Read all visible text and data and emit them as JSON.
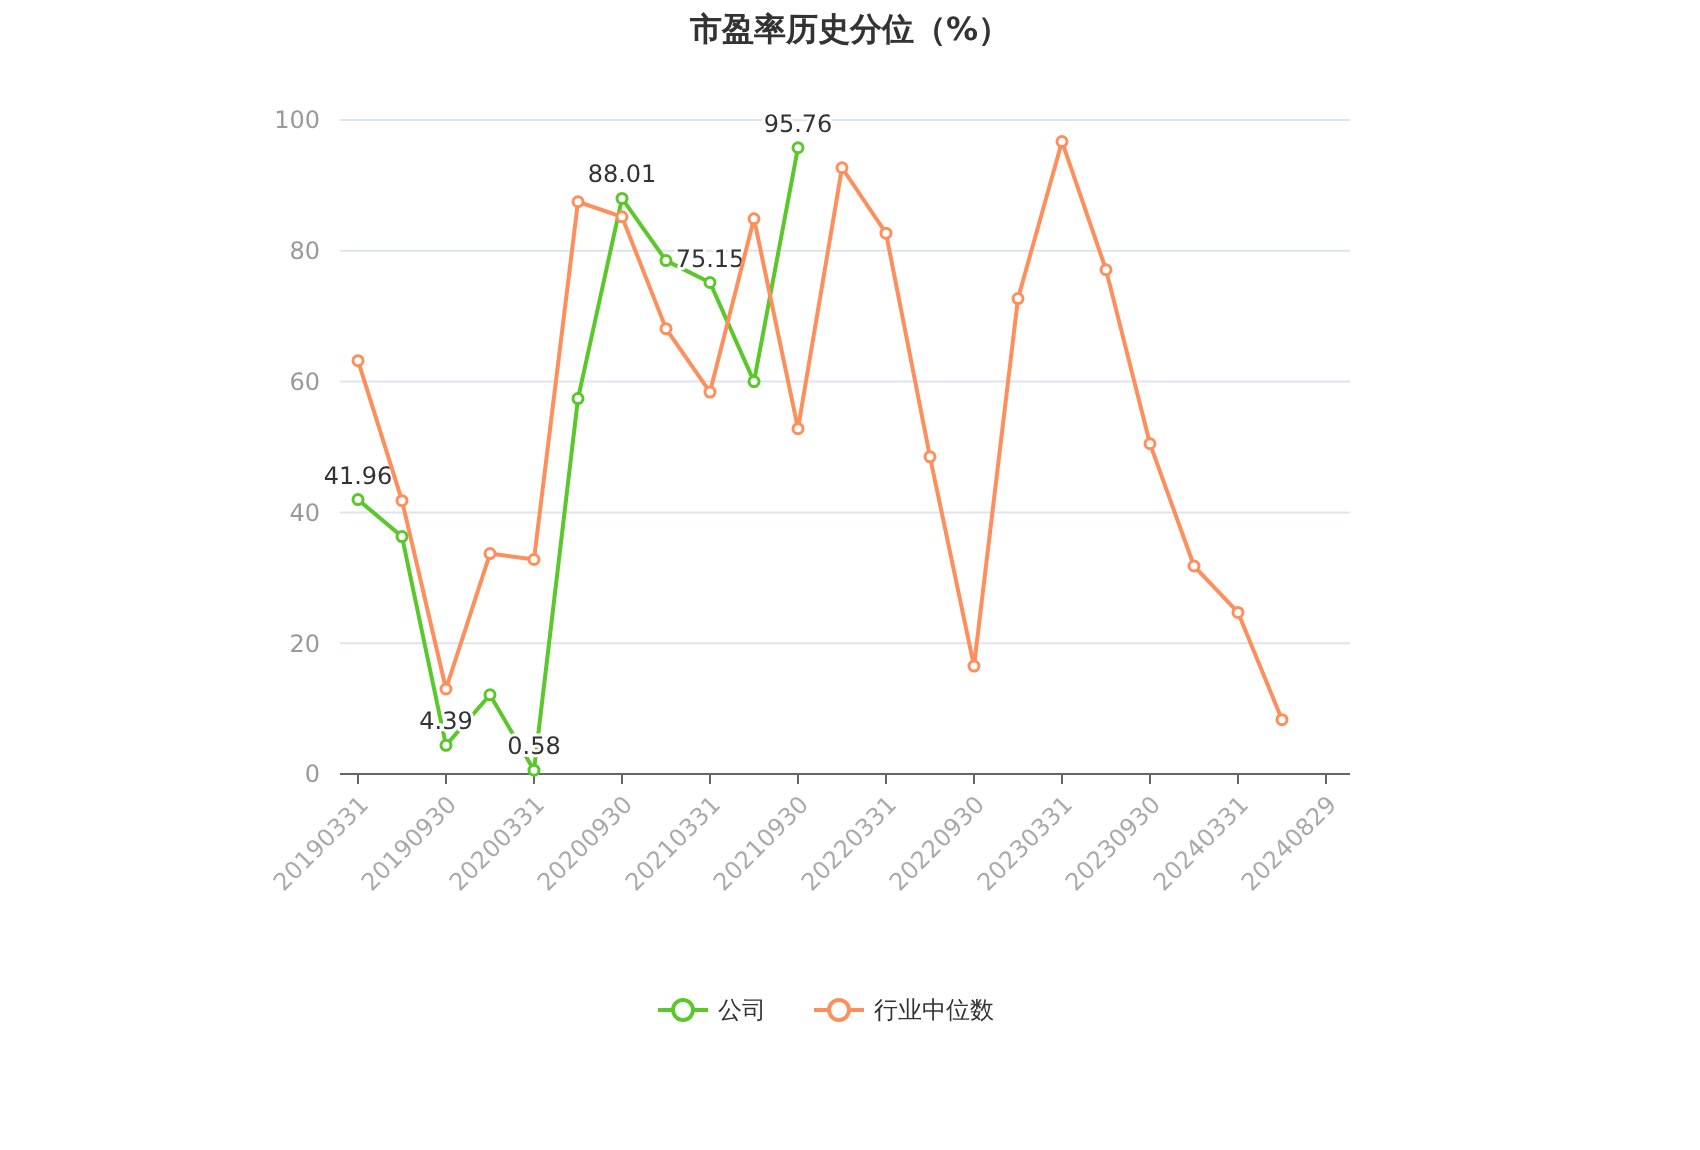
{
  "chart_data": {
    "type": "line",
    "title": "市盈率历史分位（%）",
    "categories": [
      "20190331",
      null,
      "20190930",
      null,
      "20200331",
      null,
      "20200930",
      null,
      "20210331",
      null,
      "20210930",
      null,
      "20220331",
      null,
      "20220930",
      null,
      "20230331",
      null,
      "20230930",
      null,
      "20240331",
      null,
      "20240829"
    ],
    "series": [
      {
        "name": "公司",
        "color": "#5ac72a",
        "values": [
          41.96,
          36.3,
          4.39,
          12.1,
          0.58,
          57.4,
          88.01,
          78.5,
          75.15,
          60.0,
          95.76,
          null,
          null,
          null,
          null,
          null,
          null,
          null,
          null,
          null,
          null,
          null,
          null
        ],
        "value_labels": [
          "41.96",
          null,
          "4.39",
          null,
          "0.58",
          null,
          "88.01",
          null,
          "75.15",
          null,
          "95.76",
          null,
          null,
          null,
          null,
          null,
          null,
          null,
          null,
          null,
          null,
          null,
          null
        ]
      },
      {
        "name": "行业中位数",
        "color": "#fc8f5c",
        "values": [
          63.2,
          41.8,
          13.0,
          33.7,
          32.8,
          87.5,
          85.2,
          68.1,
          58.4,
          84.9,
          52.8,
          92.7,
          82.7,
          48.5,
          16.5,
          72.7,
          96.7,
          77.1,
          50.5,
          31.8,
          24.7,
          8.3,
          null
        ]
      }
    ],
    "ylim": [
      0,
      100
    ],
    "yticks": [
      0,
      20,
      40,
      60,
      80,
      100
    ],
    "grid": "y",
    "legend": "bottom",
    "marker": "circle",
    "line_style": "solid"
  }
}
